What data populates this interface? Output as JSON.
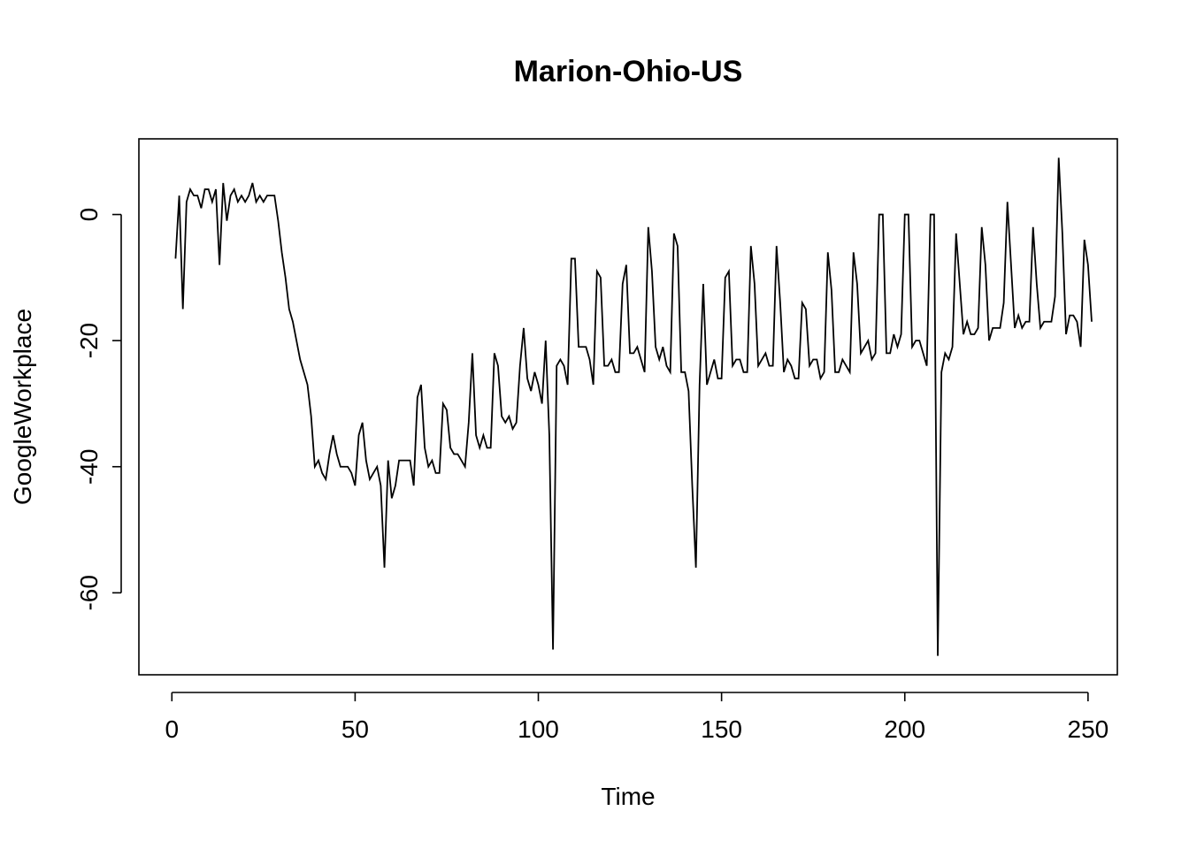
{
  "chart_data": {
    "type": "line",
    "title": "Marion-Ohio-US",
    "xlabel": "Time",
    "ylabel": "GoogleWorkplace",
    "xlim": [
      -9,
      258
    ],
    "ylim": [
      -73,
      12
    ],
    "x_ticks": [
      0,
      50,
      100,
      150,
      200,
      250
    ],
    "y_ticks": [
      -60,
      -40,
      -20,
      0
    ],
    "grid": false,
    "legend": "none",
    "line_color": "#000000",
    "series": [
      {
        "x_start": 1,
        "values": [
          -7,
          3,
          -15,
          2,
          4,
          3,
          3,
          1,
          4,
          4,
          2,
          4,
          -8,
          5,
          -1,
          3,
          4,
          2,
          3,
          2,
          3,
          5,
          2,
          3,
          2,
          3,
          3,
          3,
          -1,
          -6,
          -10,
          -15,
          -17,
          -20,
          -23,
          -25,
          -27,
          -32,
          -40,
          -39,
          -41,
          -42,
          -38,
          -35,
          -38,
          -40,
          -40,
          -40,
          -41,
          -43,
          -35,
          -33,
          -39,
          -42,
          -41,
          -40,
          -43,
          -56,
          -39,
          -45,
          -43,
          -39,
          -39,
          -39,
          -39,
          -43,
          -29,
          -27,
          -37,
          -40,
          -39,
          -41,
          -41,
          -30,
          -31,
          -37,
          -38,
          -38,
          -39,
          -40,
          -33,
          -22,
          -35,
          -37,
          -35,
          -37,
          -37,
          -22,
          -24,
          -32,
          -33,
          -32,
          -34,
          -33,
          -24,
          -18,
          -26,
          -28,
          -25,
          -27,
          -30,
          -20,
          -35,
          -69,
          -24,
          -23,
          -24,
          -27,
          -7,
          -7,
          -21,
          -21,
          -21,
          -23,
          -27,
          -9,
          -10,
          -24,
          -24,
          -23,
          -25,
          -25,
          -11,
          -8,
          -22,
          -22,
          -21,
          -23,
          -25,
          -2,
          -9,
          -21,
          -23,
          -21,
          -24,
          -25,
          -3,
          -5,
          -25,
          -25,
          -28,
          -43,
          -56,
          -27,
          -11,
          -27,
          -25,
          -23,
          -26,
          -26,
          -10,
          -9,
          -24,
          -23,
          -23,
          -25,
          -25,
          -5,
          -11,
          -24,
          -23,
          -22,
          -24,
          -24,
          -5,
          -14,
          -25,
          -23,
          -24,
          -26,
          -26,
          -14,
          -15,
          -24,
          -23,
          -23,
          -26,
          -25,
          -6,
          -12,
          -25,
          -25,
          -23,
          -24,
          -25,
          -6,
          -11,
          -22,
          -21,
          -20,
          -23,
          -22,
          0,
          0,
          -22,
          -22,
          -19,
          -21,
          -19,
          0,
          0,
          -21,
          -20,
          -20,
          -22,
          -24,
          0,
          0,
          -70,
          -25,
          -22,
          -23,
          -21,
          -3,
          -11,
          -19,
          -17,
          -19,
          -19,
          -18,
          -2,
          -8,
          -20,
          -18,
          -18,
          -18,
          -14,
          2,
          -8,
          -18,
          -16,
          -18,
          -17,
          -17,
          -2,
          -11,
          -18,
          -17,
          -17,
          -17,
          -13,
          9,
          -3,
          -19,
          -16,
          -16,
          -17,
          -21,
          -4,
          -8,
          -17
        ]
      }
    ]
  }
}
